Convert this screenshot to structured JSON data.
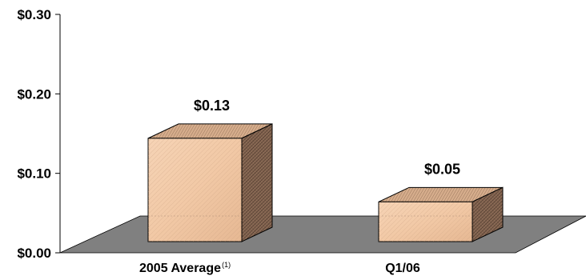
{
  "chart_data": {
    "type": "bar",
    "style": "3d",
    "categories": [
      "2005 Average",
      "Q1/06"
    ],
    "category_superscripts": [
      "(1)",
      ""
    ],
    "values": [
      0.13,
      0.05
    ],
    "data_labels": [
      "$0.13",
      "$0.05"
    ],
    "y_ticks": [
      "$0.00",
      "$0.10",
      "$0.20",
      "$0.30"
    ],
    "y_tick_values": [
      0,
      0.1,
      0.2,
      0.3
    ],
    "ylim": [
      0,
      0.3
    ],
    "grid": false,
    "legend": "none",
    "title": "",
    "xlabel": "",
    "ylabel": "",
    "colors": {
      "bar_front": "#f2c9a6",
      "bar_top": "#d6ad8c",
      "bar_side": "#8a6a55",
      "floor": "#808080",
      "axis": "#000000"
    }
  }
}
